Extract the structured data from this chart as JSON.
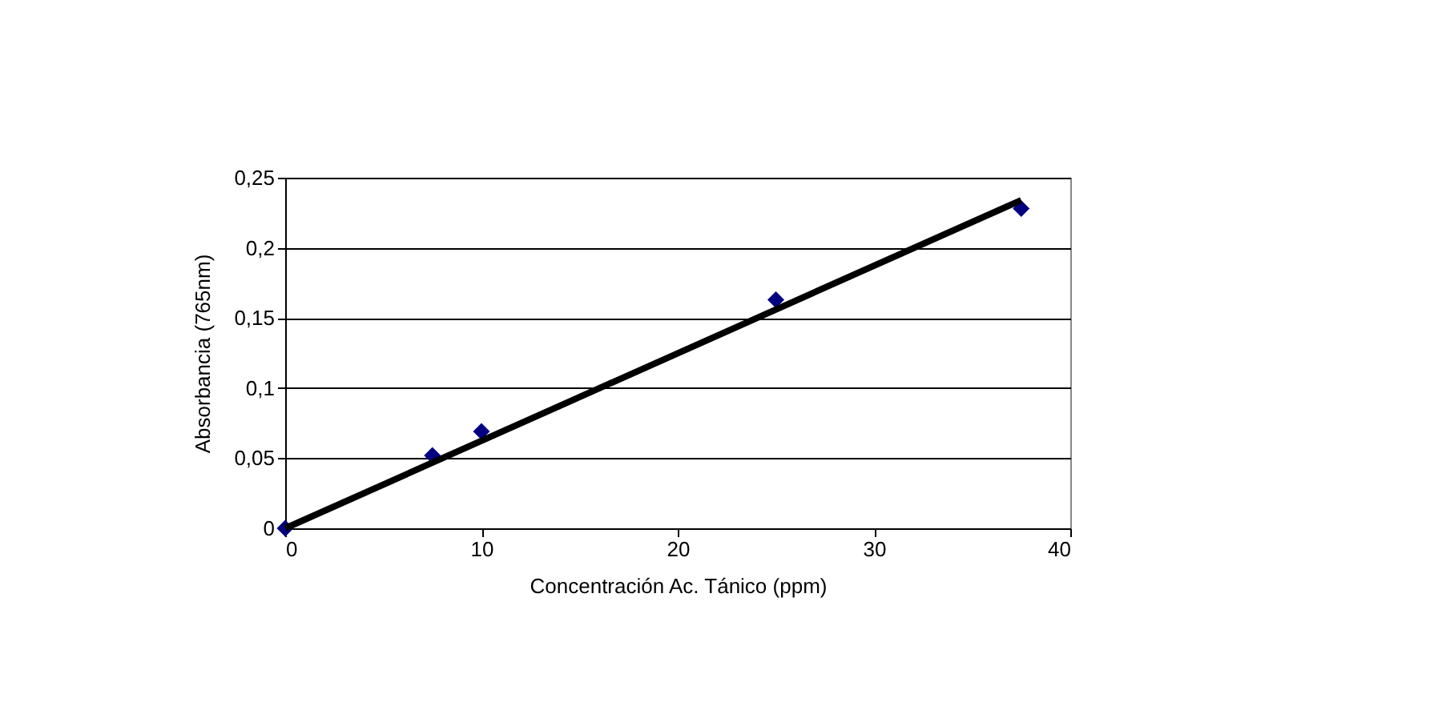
{
  "chart_data": {
    "type": "scatter",
    "xlabel": "Concentración Ac. Tánico (ppm)",
    "ylabel": "Absorbancia (765nm)",
    "xlim": [
      0,
      40
    ],
    "xticks": [
      0,
      10,
      20,
      30,
      40
    ],
    "ylim": [
      0,
      0.25
    ],
    "yticks": [
      {
        "value": 0,
        "label": "0"
      },
      {
        "value": 0.05,
        "label": "0,05"
      },
      {
        "value": 0.1,
        "label": "0,1"
      },
      {
        "value": 0.15,
        "label": "0,15"
      },
      {
        "value": 0.2,
        "label": "0,2"
      },
      {
        "value": 0.25,
        "label": "0,25"
      }
    ],
    "grid": "y",
    "series": [
      {
        "marker": "diamond",
        "color": "#000080",
        "x": [
          0,
          7.5,
          10,
          25,
          37.5
        ],
        "values": [
          0,
          0.052,
          0.069,
          0.163,
          0.228
        ]
      },
      {
        "type": "line",
        "marker": "none",
        "line_style": "solid",
        "color": "#000000",
        "x": [
          0,
          37.5
        ],
        "values": [
          0,
          0.234
        ]
      }
    ]
  }
}
